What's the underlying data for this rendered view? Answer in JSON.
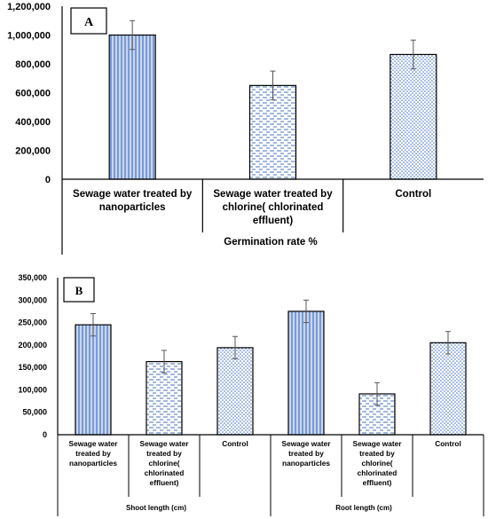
{
  "chart_data": [
    {
      "type": "bar",
      "panel_label": "A",
      "categories": [
        "Sewage water treated by nanoparticles",
        "Sewage water treated by chlorine( chlorinated effluent)",
        "Control"
      ],
      "category_lines": [
        [
          "Sewage water treated by",
          "nanoparticles"
        ],
        [
          "Sewage water treated by",
          "chlorine( chlorinated",
          "effluent)"
        ],
        [
          "Control"
        ]
      ],
      "group_label": "Germination rate %",
      "values": [
        1000000,
        650000,
        865000
      ],
      "errors": [
        100000,
        100000,
        100000
      ],
      "yticks": [
        "0",
        "200,000",
        "400,000",
        "600,000",
        "800,000",
        "1,000,000",
        "1,200,000"
      ],
      "ylim": [
        0,
        1200000
      ],
      "xlabel": "",
      "ylabel": "",
      "bar_patterns": [
        "vertical-lines-blue",
        "horizontal-dashes-blue",
        "dots-blue"
      ],
      "grid": false
    },
    {
      "type": "bar",
      "panel_label": "B",
      "groups": [
        {
          "label": "Shoot length (cm)",
          "categories": [
            "Sewage water treated by nanoparticles",
            "Sewage water treated by chlorine( chlorinated effluent)",
            "Control"
          ],
          "values": [
            245000,
            163000,
            194000
          ],
          "errors": [
            25000,
            25000,
            25000
          ]
        },
        {
          "label": "Root length (cm)",
          "categories": [
            "Sewage water treated by nanoparticles",
            "Sewage water treated by chlorine( chlorinated effluent)",
            "Control"
          ],
          "values": [
            275000,
            91000,
            205000
          ],
          "errors": [
            25000,
            25000,
            25000
          ]
        }
      ],
      "category_lines": [
        [
          "Sewage water",
          "treated by",
          "nanoparticles"
        ],
        [
          "Sewage water",
          "treated by",
          "chlorine(",
          "chlorinated",
          "effluent)"
        ],
        [
          "Control"
        ]
      ],
      "yticks": [
        "0",
        "50,000",
        "100,000",
        "150,000",
        "200,000",
        "250,000",
        "300,000",
        "350,000"
      ],
      "ylim": [
        0,
        350000
      ],
      "xlabel": "",
      "ylabel": "",
      "bar_patterns": [
        "vertical-lines-blue",
        "horizontal-dashes-blue",
        "dots-blue"
      ],
      "grid": false
    }
  ],
  "colors": {
    "bar_fill_1": "#b4c7e7",
    "bar_line_1": "#4472c4",
    "bar_fill_2": "#ffffff",
    "bar_line_2": "#4472c4",
    "bar_fill_3": "#ffffff",
    "bar_dot_3": "#4472c4",
    "axis": "#000000",
    "error_bar": "#555555"
  }
}
